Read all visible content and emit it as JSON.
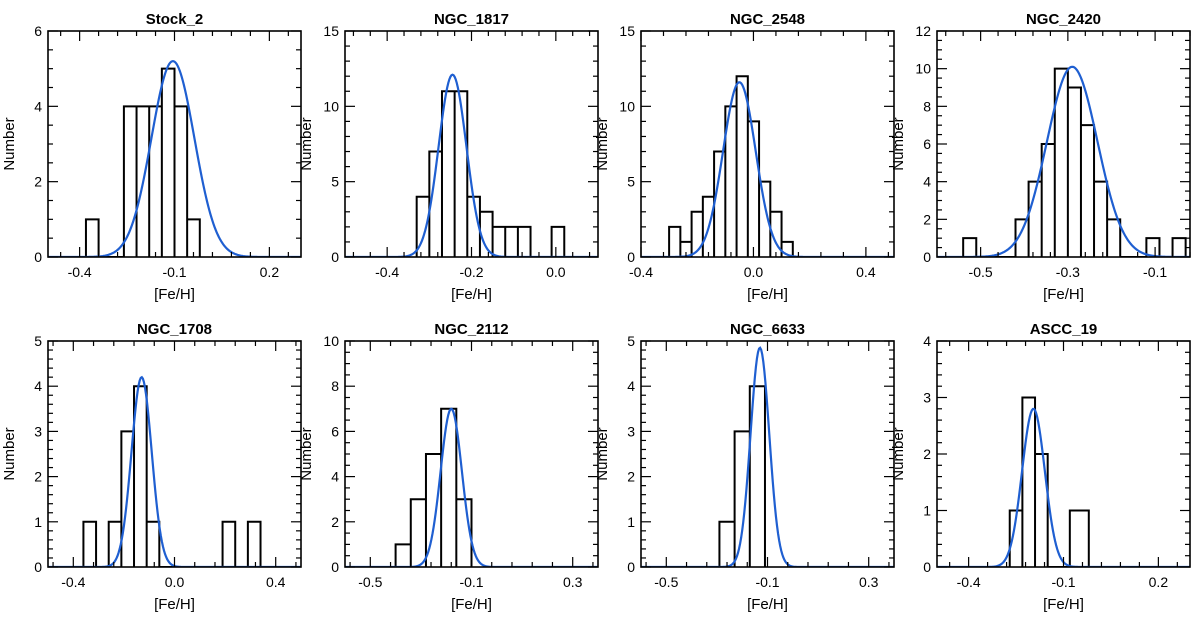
{
  "chart_data": [
    {
      "type": "histogram",
      "title": "Stock_2",
      "xlabel": "[Fe/H]",
      "ylabel": "Number",
      "xlim": [
        -0.5,
        0.3
      ],
      "ylim": [
        0,
        6
      ],
      "xticks": [
        -0.4,
        -0.1,
        0.2
      ],
      "yticks": [
        0,
        2,
        4,
        6
      ],
      "bins": [
        {
          "x0": -0.38,
          "x1": -0.34,
          "count": 1
        },
        {
          "x0": -0.34,
          "x1": -0.26,
          "count": 0
        },
        {
          "x0": -0.26,
          "x1": -0.22,
          "count": 4
        },
        {
          "x0": -0.22,
          "x1": -0.18,
          "count": 4
        },
        {
          "x0": -0.18,
          "x1": -0.14,
          "count": 4
        },
        {
          "x0": -0.14,
          "x1": -0.1,
          "count": 5
        },
        {
          "x0": -0.1,
          "x1": -0.06,
          "count": 4
        },
        {
          "x0": -0.06,
          "x1": -0.02,
          "count": 1
        }
      ],
      "gaussian_fit": {
        "mean": -0.105,
        "sigma": 0.068,
        "peak": 5.2
      }
    },
    {
      "type": "histogram",
      "title": "NGC_1817",
      "xlabel": "[Fe/H]",
      "ylabel": "Number",
      "xlim": [
        -0.5,
        0.1
      ],
      "ylim": [
        0,
        15
      ],
      "xticks": [
        -0.4,
        -0.2,
        0.0
      ],
      "yticks": [
        0,
        5,
        10,
        15
      ],
      "bins": [
        {
          "x0": -0.33,
          "x1": -0.3,
          "count": 4
        },
        {
          "x0": -0.3,
          "x1": -0.27,
          "count": 7
        },
        {
          "x0": -0.27,
          "x1": -0.24,
          "count": 11
        },
        {
          "x0": -0.24,
          "x1": -0.21,
          "count": 11
        },
        {
          "x0": -0.21,
          "x1": -0.18,
          "count": 4
        },
        {
          "x0": -0.18,
          "x1": -0.15,
          "count": 3
        },
        {
          "x0": -0.15,
          "x1": -0.12,
          "count": 2
        },
        {
          "x0": -0.12,
          "x1": -0.09,
          "count": 2
        },
        {
          "x0": -0.09,
          "x1": -0.06,
          "count": 2
        },
        {
          "x0": -0.06,
          "x1": -0.01,
          "count": 0
        },
        {
          "x0": -0.01,
          "x1": 0.02,
          "count": 2
        }
      ],
      "gaussian_fit": {
        "mean": -0.245,
        "sigma": 0.033,
        "peak": 12.1
      }
    },
    {
      "type": "histogram",
      "title": "NGC_2548",
      "xlabel": "[Fe/H]",
      "ylabel": "Number",
      "xlim": [
        -0.4,
        0.5
      ],
      "ylim": [
        0,
        15
      ],
      "xticks": [
        -0.4,
        0.0,
        0.4
      ],
      "yticks": [
        0,
        5,
        10,
        15
      ],
      "bins": [
        {
          "x0": -0.3,
          "x1": -0.26,
          "count": 2
        },
        {
          "x0": -0.26,
          "x1": -0.22,
          "count": 1
        },
        {
          "x0": -0.22,
          "x1": -0.18,
          "count": 3
        },
        {
          "x0": -0.18,
          "x1": -0.14,
          "count": 4
        },
        {
          "x0": -0.14,
          "x1": -0.1,
          "count": 7
        },
        {
          "x0": -0.1,
          "x1": -0.06,
          "count": 10
        },
        {
          "x0": -0.06,
          "x1": -0.02,
          "count": 12
        },
        {
          "x0": -0.02,
          "x1": 0.02,
          "count": 9
        },
        {
          "x0": 0.02,
          "x1": 0.06,
          "count": 5
        },
        {
          "x0": 0.06,
          "x1": 0.1,
          "count": 3
        },
        {
          "x0": 0.1,
          "x1": 0.14,
          "count": 1
        }
      ],
      "gaussian_fit": {
        "mean": -0.05,
        "sigma": 0.058,
        "peak": 11.6
      }
    },
    {
      "type": "histogram",
      "title": "NGC_2420",
      "xlabel": "[Fe/H]",
      "ylabel": "Number",
      "xlim": [
        -0.6,
        -0.02
      ],
      "ylim": [
        0,
        12
      ],
      "xticks": [
        -0.5,
        -0.3,
        -0.1
      ],
      "yticks": [
        0,
        2,
        4,
        6,
        8,
        10,
        12
      ],
      "bins": [
        {
          "x0": -0.54,
          "x1": -0.51,
          "count": 1
        },
        {
          "x0": -0.51,
          "x1": -0.42,
          "count": 0
        },
        {
          "x0": -0.42,
          "x1": -0.39,
          "count": 2
        },
        {
          "x0": -0.39,
          "x1": -0.36,
          "count": 4
        },
        {
          "x0": -0.36,
          "x1": -0.33,
          "count": 6
        },
        {
          "x0": -0.33,
          "x1": -0.3,
          "count": 10
        },
        {
          "x0": -0.3,
          "x1": -0.27,
          "count": 9
        },
        {
          "x0": -0.27,
          "x1": -0.24,
          "count": 7
        },
        {
          "x0": -0.24,
          "x1": -0.21,
          "count": 4
        },
        {
          "x0": -0.21,
          "x1": -0.18,
          "count": 2
        },
        {
          "x0": -0.18,
          "x1": -0.12,
          "count": 0
        },
        {
          "x0": -0.12,
          "x1": -0.09,
          "count": 1
        },
        {
          "x0": -0.09,
          "x1": -0.06,
          "count": 0
        },
        {
          "x0": -0.06,
          "x1": -0.03,
          "count": 1
        }
      ],
      "gaussian_fit": {
        "mean": -0.29,
        "sigma": 0.058,
        "peak": 10.1
      }
    },
    {
      "type": "histogram",
      "title": "NGC_1708",
      "xlabel": "[Fe/H]",
      "ylabel": "Number",
      "xlim": [
        -0.5,
        0.5
      ],
      "ylim": [
        0,
        5
      ],
      "xticks": [
        -0.4,
        0.0,
        0.4
      ],
      "yticks": [
        0,
        1,
        2,
        3,
        4,
        5
      ],
      "bins": [
        {
          "x0": -0.36,
          "x1": -0.31,
          "count": 1
        },
        {
          "x0": -0.31,
          "x1": -0.26,
          "count": 0
        },
        {
          "x0": -0.26,
          "x1": -0.21,
          "count": 1
        },
        {
          "x0": -0.21,
          "x1": -0.16,
          "count": 3
        },
        {
          "x0": -0.16,
          "x1": -0.11,
          "count": 4
        },
        {
          "x0": -0.11,
          "x1": -0.06,
          "count": 1
        },
        {
          "x0": -0.06,
          "x1": 0.19,
          "count": 0
        },
        {
          "x0": 0.19,
          "x1": 0.24,
          "count": 1
        },
        {
          "x0": 0.24,
          "x1": 0.29,
          "count": 0
        },
        {
          "x0": 0.29,
          "x1": 0.34,
          "count": 1
        }
      ],
      "gaussian_fit": {
        "mean": -0.13,
        "sigma": 0.04,
        "peak": 4.2
      }
    },
    {
      "type": "histogram",
      "title": "NGC_2112",
      "xlabel": "[Fe/H]",
      "ylabel": "Number",
      "xlim": [
        -0.6,
        0.4
      ],
      "ylim": [
        0,
        10
      ],
      "xticks": [
        -0.5,
        -0.1,
        0.3
      ],
      "yticks": [
        0,
        2,
        4,
        6,
        8,
        10
      ],
      "bins": [
        {
          "x0": -0.4,
          "x1": -0.34,
          "count": 1
        },
        {
          "x0": -0.34,
          "x1": -0.28,
          "count": 3
        },
        {
          "x0": -0.28,
          "x1": -0.22,
          "count": 5
        },
        {
          "x0": -0.22,
          "x1": -0.16,
          "count": 7
        },
        {
          "x0": -0.16,
          "x1": -0.1,
          "count": 3
        }
      ],
      "gaussian_fit": {
        "mean": -0.18,
        "sigma": 0.042,
        "peak": 7.0
      }
    },
    {
      "type": "histogram",
      "title": "NGC_6633",
      "xlabel": "[Fe/H]",
      "ylabel": "Number",
      "xlim": [
        -0.6,
        0.4
      ],
      "ylim": [
        0,
        5
      ],
      "xticks": [
        -0.5,
        -0.1,
        0.3
      ],
      "yticks": [
        0,
        1,
        2,
        3,
        4,
        5
      ],
      "bins": [
        {
          "x0": -0.29,
          "x1": -0.23,
          "count": 1
        },
        {
          "x0": -0.23,
          "x1": -0.17,
          "count": 3
        },
        {
          "x0": -0.17,
          "x1": -0.11,
          "count": 4
        }
      ],
      "gaussian_fit": {
        "mean": -0.13,
        "sigma": 0.037,
        "peak": 4.85
      }
    },
    {
      "type": "histogram",
      "title": "ASCC_19",
      "xlabel": "[Fe/H]",
      "ylabel": "Number",
      "xlim": [
        -0.5,
        0.3
      ],
      "ylim": [
        0,
        4
      ],
      "xticks": [
        -0.4,
        -0.1,
        0.2
      ],
      "yticks": [
        0,
        1,
        2,
        3,
        4
      ],
      "bins": [
        {
          "x0": -0.27,
          "x1": -0.23,
          "count": 1
        },
        {
          "x0": -0.23,
          "x1": -0.19,
          "count": 3
        },
        {
          "x0": -0.19,
          "x1": -0.15,
          "count": 2
        },
        {
          "x0": -0.15,
          "x1": -0.08,
          "count": 0
        },
        {
          "x0": -0.08,
          "x1": -0.02,
          "count": 1
        }
      ],
      "gaussian_fit": {
        "mean": -0.195,
        "sigma": 0.036,
        "peak": 2.8
      }
    }
  ]
}
